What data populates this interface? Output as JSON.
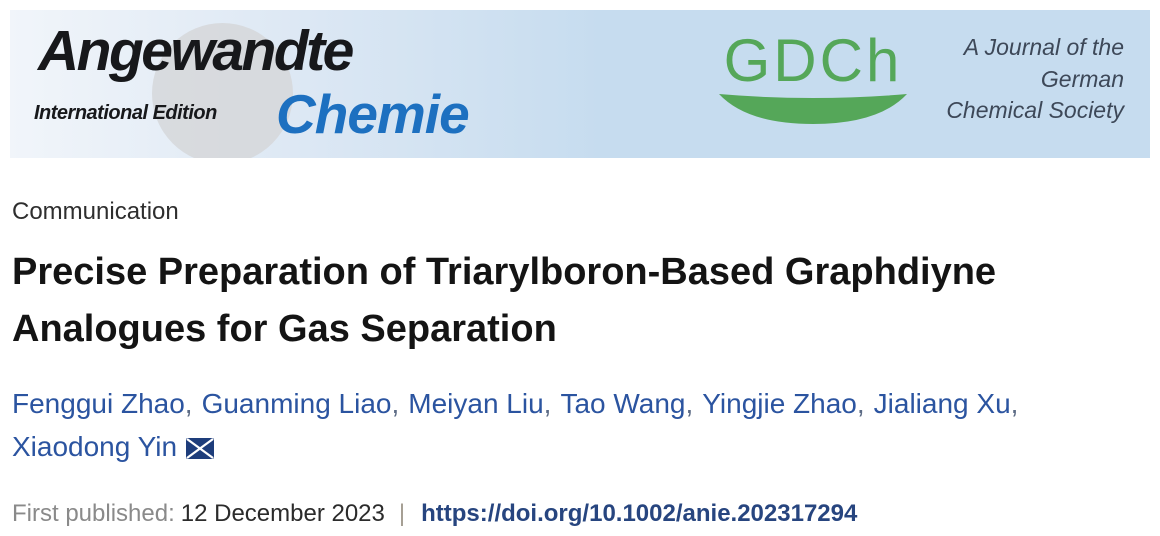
{
  "banner": {
    "angewandte": "Angewandte",
    "international_edition": "International Edition",
    "chemie": "Chemie",
    "gdch": "GDCh",
    "tagline": [
      "A Journal of the",
      "German",
      "Chemical Society"
    ]
  },
  "article": {
    "type": "Communication",
    "title": "Precise Preparation of Triarylboron-Based Graphdiyne Analogues for Gas Separation",
    "first_published_label": "First published:",
    "first_published_date": "12 December 2023",
    "separator": "|",
    "doi": "https://doi.org/10.1002/anie.202317294"
  },
  "authors": {
    "names": [
      "Fenggui Zhao",
      "Guanming Liao",
      "Meiyan Liu",
      "Tao Wang",
      "Yingjie Zhao",
      "Jialiang Xu",
      "Xiaodong Yin"
    ],
    "separator": ",",
    "break_after": 6,
    "email_icon": "envelope-icon"
  },
  "colors": {
    "chemie_blue": "#1d70c0",
    "gdch_green": "#55a759",
    "banner_blue": "#c6dcef",
    "author_blue": "#2b54a0",
    "doi_blue": "#27457f",
    "title_black": "#141414",
    "envelope_navy": "#1e3d7b"
  }
}
